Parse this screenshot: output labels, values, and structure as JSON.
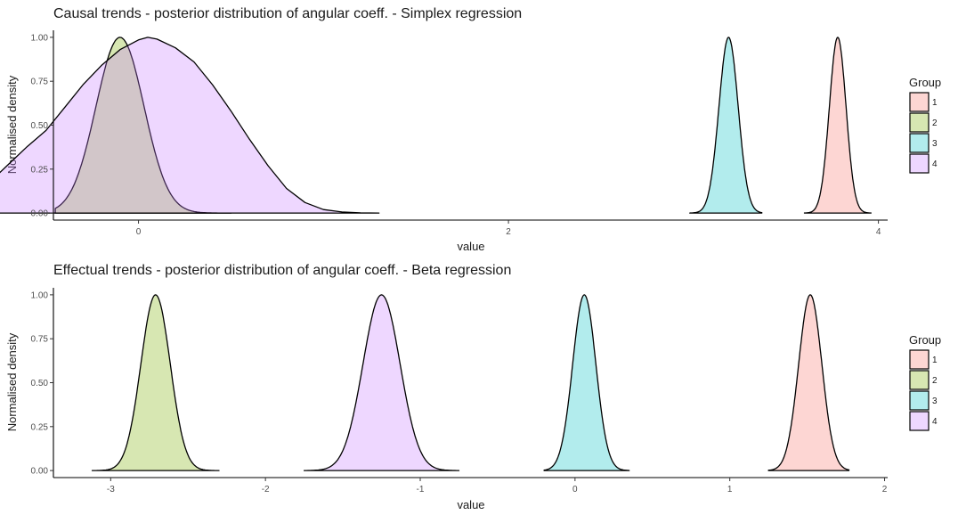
{
  "chart_data": [
    {
      "type": "area",
      "title": "Causal trends - posterior distribution of angular coeff. - Simplex regression",
      "xlabel": "value",
      "ylabel": "Normalised density",
      "xlim": [
        -0.46,
        4.05
      ],
      "ylim": [
        -0.04,
        1.04
      ],
      "x_ticks": [
        0,
        2,
        4
      ],
      "x_tick_labels": [
        "0",
        "2",
        "4"
      ],
      "y_ticks": [
        0,
        0.25,
        0.5,
        0.75,
        1
      ],
      "y_tick_labels": [
        "0.00",
        "0.25",
        "0.50",
        "0.75",
        "1.00"
      ],
      "grid": false,
      "legend": {
        "title": "Group",
        "position": "right",
        "entries": [
          "1",
          "2",
          "3",
          "4"
        ]
      },
      "series": [
        {
          "name": "1",
          "color": "#F8766D",
          "mode": "gaussian",
          "center": 3.78,
          "sd": 0.045,
          "range": [
            3.6,
            3.96
          ]
        },
        {
          "name": "2",
          "color": "#7CAE00",
          "mode": "gaussian",
          "center": -0.1,
          "sd": 0.13,
          "range": [
            -0.45,
            0.5
          ]
        },
        {
          "name": "3",
          "color": "#00BFC4",
          "mode": "gaussian",
          "center": 3.19,
          "sd": 0.052,
          "range": [
            2.98,
            3.37
          ]
        },
        {
          "name": "4",
          "color": "#C77CFF",
          "mode": "points",
          "x": [
            -1.55,
            -1.4,
            -1.3,
            -1.2,
            -1.1,
            -1.0,
            -0.9,
            -0.8,
            -0.7,
            -0.6,
            -0.5,
            -0.4,
            -0.3,
            -0.2,
            -0.1,
            0.0,
            0.05,
            0.1,
            0.2,
            0.3,
            0.4,
            0.5,
            0.6,
            0.7,
            0.8,
            0.9,
            1.0,
            1.1,
            1.2,
            1.3
          ],
          "y": [
            0.0,
            0.005,
            0.015,
            0.03,
            0.04,
            0.07,
            0.11,
            0.18,
            0.28,
            0.38,
            0.47,
            0.6,
            0.73,
            0.84,
            0.93,
            0.985,
            1.0,
            0.99,
            0.94,
            0.86,
            0.73,
            0.58,
            0.42,
            0.27,
            0.14,
            0.06,
            0.02,
            0.006,
            0.001,
            0.0
          ]
        }
      ]
    },
    {
      "type": "area",
      "title": "Effectual trends - posterior distribution of angular coeff. - Beta regression",
      "xlabel": "value",
      "ylabel": "Normalised density",
      "xlim": [
        -3.37,
        2.02
      ],
      "ylim": [
        -0.04,
        1.04
      ],
      "x_ticks": [
        -3,
        -2,
        -1,
        0,
        1,
        2
      ],
      "x_tick_labels": [
        "-3",
        "-2",
        "-1",
        "0",
        "1",
        "2"
      ],
      "y_ticks": [
        0,
        0.25,
        0.5,
        0.75,
        1
      ],
      "y_tick_labels": [
        "0.00",
        "0.25",
        "0.50",
        "0.75",
        "1.00"
      ],
      "grid": false,
      "legend": {
        "title": "Group",
        "position": "right",
        "entries": [
          "1",
          "2",
          "3",
          "4"
        ]
      },
      "series": [
        {
          "name": "1",
          "color": "#F8766D",
          "mode": "gaussian",
          "center": 1.52,
          "sd": 0.075,
          "range": [
            1.25,
            1.77
          ]
        },
        {
          "name": "2",
          "color": "#7CAE00",
          "mode": "gaussian",
          "center": -2.71,
          "sd": 0.095,
          "range": [
            -3.12,
            -2.3
          ]
        },
        {
          "name": "3",
          "color": "#00BFC4",
          "mode": "gaussian",
          "center": 0.06,
          "sd": 0.075,
          "range": [
            -0.2,
            0.35
          ]
        },
        {
          "name": "4",
          "color": "#C77CFF",
          "mode": "gaussian",
          "center": -1.25,
          "sd": 0.12,
          "range": [
            -1.75,
            -0.75
          ]
        }
      ]
    }
  ]
}
